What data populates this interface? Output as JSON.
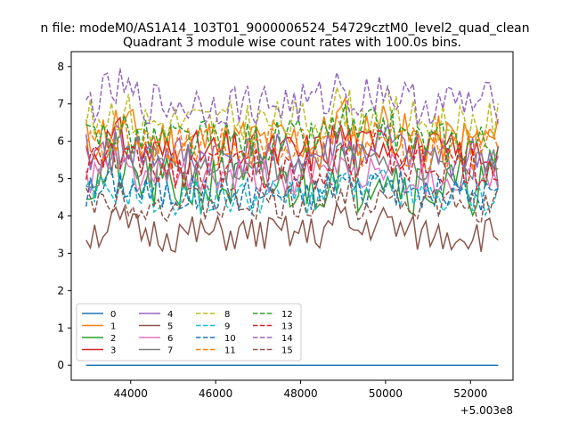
{
  "figure": {
    "suptitle": "n file: modeM0/AS1A14_103T01_9000006524_54729cztM0_level2_quad_clean",
    "title": "Quadrant 3 module wise count rates with 100.0s bins."
  },
  "chart_data": {
    "type": "line",
    "title": "Quadrant 3 module wise count rates with 100.0s bins.",
    "xlabel": "",
    "ylabel": "",
    "x_offset_label": "+5.003e8",
    "xlim": [
      42600,
      53000
    ],
    "ylim": [
      -0.4,
      8.4
    ],
    "xticks": [
      44000,
      46000,
      48000,
      50000,
      52000
    ],
    "xtick_labels": [
      "44000",
      "46000",
      "48000",
      "50000",
      "52000"
    ],
    "yticks": [
      0,
      1,
      2,
      3,
      4,
      5,
      6,
      7,
      8
    ],
    "ytick_labels": [
      "0",
      "1",
      "2",
      "3",
      "4",
      "5",
      "6",
      "7",
      "8"
    ],
    "x_range": [
      42950,
      52650
    ],
    "x_step": 100,
    "grid": false,
    "legend": {
      "position": "lower-left",
      "columns": 4
    },
    "series": [
      {
        "name": "0",
        "color": "#1f77b4",
        "dashed": false,
        "mean": 0.0,
        "variation": 0.0,
        "seed": 0
      },
      {
        "name": "1",
        "color": "#ff7f0e",
        "dashed": false,
        "mean": 6.0,
        "variation": 0.7,
        "seed": 11
      },
      {
        "name": "2",
        "color": "#2ca02c",
        "dashed": false,
        "mean": 4.8,
        "variation": 0.8,
        "seed": 21
      },
      {
        "name": "3",
        "color": "#d62728",
        "dashed": false,
        "mean": 5.7,
        "variation": 0.6,
        "seed": 31
      },
      {
        "name": "4",
        "color": "#9467bd",
        "dashed": false,
        "mean": 5.6,
        "variation": 0.6,
        "seed": 41
      },
      {
        "name": "5",
        "color": "#8c564b",
        "dashed": false,
        "mean": 3.5,
        "variation": 0.5,
        "seed": 51
      },
      {
        "name": "6",
        "color": "#e377c2",
        "dashed": false,
        "mean": 5.0,
        "variation": 0.5,
        "seed": 61
      },
      {
        "name": "7",
        "color": "#7f7f7f",
        "dashed": false,
        "mean": 5.3,
        "variation": 0.6,
        "seed": 71
      },
      {
        "name": "8",
        "color": "#bcbd22",
        "dashed": true,
        "mean": 6.5,
        "variation": 0.6,
        "seed": 81
      },
      {
        "name": "9",
        "color": "#17becf",
        "dashed": true,
        "mean": 4.5,
        "variation": 0.5,
        "seed": 91
      },
      {
        "name": "10",
        "color": "#1f77b4",
        "dashed": true,
        "mean": 4.6,
        "variation": 0.5,
        "seed": 101
      },
      {
        "name": "11",
        "color": "#ff7f0e",
        "dashed": true,
        "mean": 5.8,
        "variation": 0.6,
        "seed": 111
      },
      {
        "name": "12",
        "color": "#2ca02c",
        "dashed": true,
        "mean": 6.0,
        "variation": 0.6,
        "seed": 121
      },
      {
        "name": "13",
        "color": "#d62728",
        "dashed": true,
        "mean": 5.3,
        "variation": 0.6,
        "seed": 131
      },
      {
        "name": "14",
        "color": "#9467bd",
        "dashed": true,
        "mean": 7.0,
        "variation": 0.6,
        "seed": 141
      },
      {
        "name": "15",
        "color": "#8c564b",
        "dashed": true,
        "mean": 4.3,
        "variation": 0.5,
        "seed": 151
      }
    ]
  }
}
